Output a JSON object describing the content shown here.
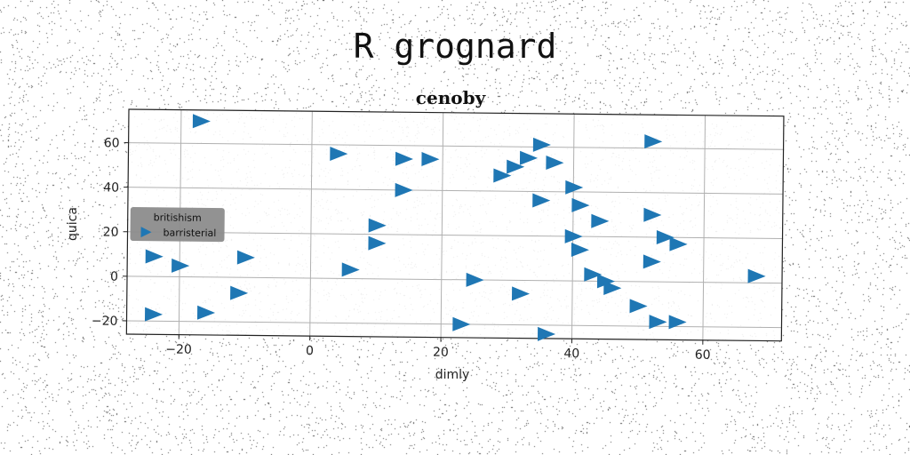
{
  "suptitle": "R grognard",
  "chart_data": {
    "type": "scatter",
    "title": "cenoby",
    "xlabel": "dimly",
    "ylabel": "quica",
    "xlim": [
      -28,
      72
    ],
    "ylim": [
      -26,
      75
    ],
    "xticks": [
      -20,
      0,
      20,
      40,
      60
    ],
    "yticks": [
      -20,
      0,
      20,
      40,
      60
    ],
    "grid": true,
    "legend": {
      "position": "center-left",
      "title": "britishism",
      "entries": [
        "barristerial"
      ]
    },
    "series": [
      {
        "name": "barristerial",
        "marker": "triangle-right",
        "color": "#1f77b4",
        "x": [
          -17,
          4,
          14,
          18,
          14,
          29,
          31,
          33,
          35,
          37,
          40,
          41,
          44,
          35,
          52,
          52,
          54,
          56,
          10,
          10,
          40,
          41,
          52,
          68,
          43,
          45,
          46,
          50,
          53,
          56,
          -24,
          -20,
          -10,
          -11,
          -16,
          -24,
          6,
          25,
          32,
          23,
          36
        ],
        "y": [
          70,
          56,
          54,
          54,
          40,
          47,
          51,
          55,
          61,
          53,
          42,
          34,
          27,
          36,
          63,
          30,
          20,
          17,
          24,
          16,
          20,
          14,
          9,
          3,
          3,
          0,
          -3,
          -11,
          -18,
          -18,
          9,
          5,
          9,
          -7,
          -16,
          -17,
          4,
          0,
          -6,
          -20,
          -24
        ]
      }
    ]
  },
  "colors": {
    "marker": "#1f77b4",
    "legend_bg": "#8c8c8c"
  }
}
